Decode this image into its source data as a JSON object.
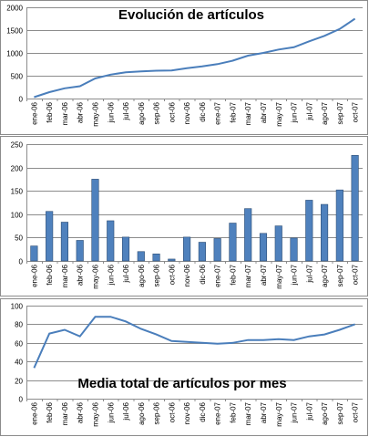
{
  "chart_data": [
    {
      "type": "line",
      "title": "Evolución de artículos",
      "xlabel": "",
      "ylabel": "",
      "ylim": [
        0,
        2000
      ],
      "yticks": [
        "0",
        "500",
        "1000",
        "1500",
        "2000"
      ],
      "grid": true,
      "categories": [
        "ene-06",
        "feb-06",
        "mar-06",
        "abr-06",
        "may-06",
        "jun-06",
        "jul-06",
        "ago-06",
        "sep-06",
        "oct-06",
        "nov-06",
        "dic-06",
        "ene-07",
        "feb-07",
        "mar-07",
        "abr-07",
        "may-07",
        "jun-07",
        "jul-07",
        "ago-07",
        "sep-07",
        "oct-07"
      ],
      "values": [
        30,
        140,
        225,
        270,
        440,
        525,
        575,
        595,
        610,
        615,
        665,
        705,
        755,
        830,
        940,
        1000,
        1075,
        1125,
        1255,
        1375,
        1525,
        1750
      ]
    },
    {
      "type": "bar",
      "title": "",
      "xlabel": "",
      "ylabel": "",
      "ylim": [
        0,
        250
      ],
      "yticks": [
        "0",
        "50",
        "100",
        "150",
        "200",
        "250"
      ],
      "grid": true,
      "categories": [
        "ene-06",
        "feb-06",
        "mar-06",
        "abr-06",
        "may-06",
        "jun-06",
        "jul-06",
        "ago-06",
        "sep-06",
        "oct-06",
        "nov-06",
        "dic-06",
        "ene-07",
        "feb-07",
        "mar-07",
        "abr-07",
        "may-07",
        "jun-07",
        "jul-07",
        "ago-07",
        "sep-07",
        "oct-07"
      ],
      "values": [
        32,
        106,
        83,
        44,
        175,
        86,
        51,
        20,
        15,
        4,
        51,
        40,
        48,
        81,
        112,
        59,
        75,
        49,
        130,
        121,
        152,
        226
      ]
    },
    {
      "type": "line",
      "title": "Media total de artículos por mes",
      "xlabel": "",
      "ylabel": "",
      "ylim": [
        0,
        100
      ],
      "yticks": [
        "0",
        "20",
        "40",
        "60",
        "80",
        "100"
      ],
      "grid": true,
      "categories": [
        "ene-06",
        "feb-06",
        "mar-06",
        "abr-06",
        "may-06",
        "jun-06",
        "jul-06",
        "ago-06",
        "sep-06",
        "oct-06",
        "nov-06",
        "dic-06",
        "ene-07",
        "feb-07",
        "mar-07",
        "abr-07",
        "may-07",
        "jun-07",
        "jul-07",
        "ago-07",
        "sep-07",
        "oct-07"
      ],
      "values": [
        33,
        70,
        74,
        67,
        88,
        88,
        83,
        75,
        69,
        62,
        61,
        60,
        59,
        60,
        63,
        63,
        64,
        63,
        67,
        69,
        74,
        80
      ]
    }
  ]
}
